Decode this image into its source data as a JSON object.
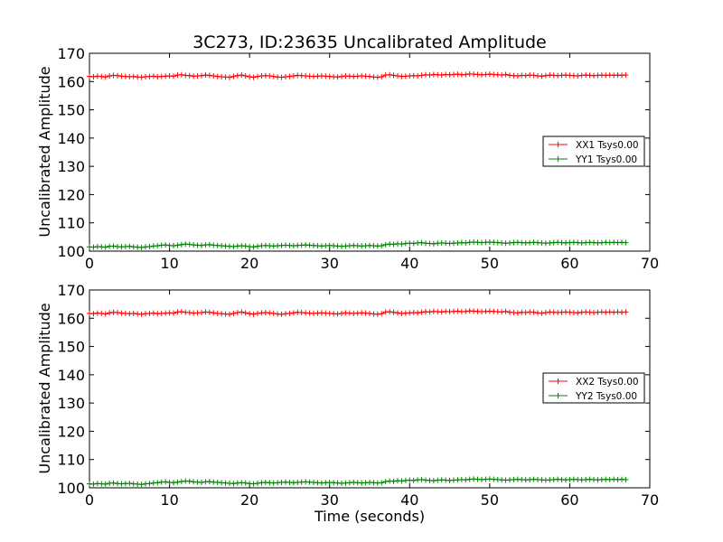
{
  "chart_data": {
    "type": "line",
    "title": "3C273, ID:23635 Uncalibrated Amplitude",
    "xlabel": "Time (seconds)",
    "shared_x_ticks": [
      0,
      10,
      20,
      30,
      40,
      50,
      60,
      70
    ],
    "panels": [
      {
        "ylabel": "Uncalibrated Amplitude",
        "xlim": [
          0,
          70
        ],
        "ylim": [
          100,
          170
        ],
        "yticks": [
          100,
          110,
          120,
          130,
          140,
          150,
          160,
          170
        ],
        "legend_position": "right",
        "series": [
          {
            "name": "XX1 Tsys0.00",
            "color": "#ff0000",
            "x_start": 0,
            "x_step": 0.5,
            "values": [
              161.8,
              161.7,
              161.9,
              161.8,
              161.6,
              162.0,
              162.2,
              162.1,
              161.9,
              161.8,
              161.7,
              161.8,
              161.6,
              161.5,
              161.7,
              161.8,
              161.9,
              161.7,
              161.8,
              161.9,
              162.0,
              161.9,
              162.3,
              162.4,
              162.2,
              162.1,
              161.9,
              162.0,
              162.1,
              162.3,
              162.2,
              162.0,
              161.8,
              161.7,
              161.6,
              161.5,
              161.8,
              162.1,
              162.3,
              162.0,
              161.7,
              161.5,
              161.8,
              162.0,
              162.1,
              162.0,
              161.8,
              161.6,
              161.5,
              161.7,
              161.8,
              162.0,
              162.2,
              162.1,
              162.0,
              161.9,
              161.8,
              161.9,
              162.0,
              161.9,
              161.8,
              161.7,
              161.6,
              161.8,
              162.0,
              161.9,
              161.8,
              161.9,
              162.0,
              161.9,
              161.8,
              161.6,
              161.5,
              161.7,
              162.3,
              162.4,
              162.2,
              162.0,
              161.8,
              161.9,
              162.0,
              162.1,
              162.0,
              162.2,
              162.4,
              162.3,
              162.5,
              162.4,
              162.3,
              162.5,
              162.4,
              162.5,
              162.6,
              162.4,
              162.5,
              162.7,
              162.6,
              162.5,
              162.4,
              162.5,
              162.6,
              162.5,
              162.4,
              162.3,
              162.5,
              162.2,
              162.1,
              162.0,
              162.2,
              162.1,
              162.3,
              162.2,
              162.0,
              161.9,
              162.1,
              162.3,
              162.2,
              162.1,
              162.2,
              162.3,
              162.2,
              162.1,
              162.0,
              162.2,
              162.3,
              162.2,
              162.1,
              162.2,
              162.3,
              162.2,
              162.3,
              162.2,
              162.3,
              162.2,
              162.3
            ]
          },
          {
            "name": "YY1 Tsys0.00",
            "color": "#008000",
            "x_start": 0,
            "x_step": 0.5,
            "values": [
              101.5,
              101.4,
              101.6,
              101.5,
              101.4,
              101.7,
              101.8,
              101.6,
              101.5,
              101.6,
              101.7,
              101.5,
              101.4,
              101.3,
              101.5,
              101.6,
              101.8,
              101.9,
              102.1,
              102.2,
              102.0,
              101.9,
              102.1,
              102.3,
              102.5,
              102.4,
              102.2,
              102.1,
              102.0,
              102.2,
              102.3,
              102.1,
              102.0,
              101.9,
              101.8,
              101.7,
              101.6,
              101.8,
              101.9,
              101.8,
              101.6,
              101.5,
              101.7,
              101.9,
              102.0,
              101.9,
              101.8,
              101.9,
              102.0,
              102.1,
              102.0,
              101.9,
              102.0,
              102.1,
              102.2,
              102.1,
              102.0,
              101.9,
              101.8,
              101.9,
              102.0,
              101.9,
              101.8,
              101.7,
              101.8,
              101.9,
              102.0,
              101.9,
              101.8,
              101.9,
              102.0,
              101.9,
              101.8,
              101.9,
              102.3,
              102.5,
              102.4,
              102.6,
              102.5,
              102.7,
              102.8,
              102.7,
              102.9,
              103.0,
              102.8,
              102.7,
              102.6,
              102.8,
              102.9,
              102.8,
              102.7,
              102.8,
              102.9,
              103.0,
              102.9,
              103.1,
              103.2,
              103.1,
              103.0,
              103.1,
              103.2,
              103.1,
              103.0,
              102.9,
              102.8,
              102.9,
              103.0,
              103.1,
              103.0,
              102.9,
              103.0,
              103.1,
              103.0,
              102.9,
              102.8,
              102.9,
              103.0,
              103.1,
              103.0,
              102.9,
              103.0,
              103.1,
              103.0,
              102.9,
              103.0,
              103.1,
              103.0,
              102.9,
              103.0,
              103.1,
              103.0,
              103.1,
              103.0,
              103.1,
              103.0
            ]
          }
        ]
      },
      {
        "ylabel": "Uncalibrated Amplitude",
        "xlim": [
          0,
          70
        ],
        "ylim": [
          100,
          170
        ],
        "yticks": [
          100,
          110,
          120,
          130,
          140,
          150,
          160,
          170
        ],
        "legend_position": "right",
        "series": [
          {
            "name": "XX2 Tsys0.00",
            "color": "#ff0000",
            "x_start": 0,
            "x_step": 0.5,
            "values": [
              161.7,
              161.6,
              161.8,
              161.7,
              161.5,
              161.9,
              162.1,
              162.0,
              161.8,
              161.7,
              161.6,
              161.7,
              161.5,
              161.4,
              161.6,
              161.7,
              161.8,
              161.6,
              161.7,
              161.8,
              161.9,
              161.8,
              162.2,
              162.3,
              162.1,
              162.0,
              161.8,
              161.9,
              162.0,
              162.2,
              162.1,
              161.9,
              161.7,
              161.6,
              161.5,
              161.4,
              161.7,
              162.0,
              162.2,
              161.9,
              161.6,
              161.4,
              161.7,
              161.9,
              162.0,
              161.9,
              161.7,
              161.5,
              161.4,
              161.6,
              161.7,
              161.9,
              162.1,
              162.0,
              161.9,
              161.8,
              161.7,
              161.8,
              161.9,
              161.8,
              161.7,
              161.6,
              161.5,
              161.7,
              161.9,
              161.8,
              161.7,
              161.8,
              161.9,
              161.8,
              161.7,
              161.5,
              161.4,
              161.6,
              162.2,
              162.3,
              162.1,
              161.9,
              161.7,
              161.8,
              161.9,
              162.0,
              161.9,
              162.1,
              162.3,
              162.2,
              162.4,
              162.3,
              162.2,
              162.4,
              162.3,
              162.4,
              162.5,
              162.3,
              162.4,
              162.6,
              162.5,
              162.4,
              162.3,
              162.4,
              162.5,
              162.4,
              162.3,
              162.2,
              162.4,
              162.1,
              162.0,
              161.9,
              162.1,
              162.0,
              162.2,
              162.1,
              161.9,
              161.8,
              162.0,
              162.2,
              162.1,
              162.0,
              162.1,
              162.2,
              162.1,
              162.0,
              161.9,
              162.1,
              162.2,
              162.1,
              162.0,
              162.1,
              162.2,
              162.1,
              162.2,
              162.1,
              162.2,
              162.1,
              162.2
            ]
          },
          {
            "name": "YY2 Tsys0.00",
            "color": "#008000",
            "x_start": 0,
            "x_step": 0.5,
            "values": [
              101.4,
              101.3,
              101.5,
              101.4,
              101.3,
              101.6,
              101.7,
              101.5,
              101.4,
              101.5,
              101.6,
              101.4,
              101.3,
              101.2,
              101.4,
              101.5,
              101.7,
              101.8,
              102.0,
              102.1,
              101.9,
              101.8,
              102.0,
              102.2,
              102.4,
              102.3,
              102.1,
              102.0,
              101.9,
              102.1,
              102.2,
              102.0,
              101.9,
              101.8,
              101.7,
              101.6,
              101.5,
              101.7,
              101.8,
              101.7,
              101.5,
              101.4,
              101.6,
              101.8,
              101.9,
              101.8,
              101.7,
              101.8,
              101.9,
              102.0,
              101.9,
              101.8,
              101.9,
              102.0,
              102.1,
              102.0,
              101.9,
              101.8,
              101.7,
              101.8,
              101.9,
              101.8,
              101.7,
              101.6,
              101.7,
              101.8,
              101.9,
              101.8,
              101.7,
              101.8,
              101.9,
              101.8,
              101.7,
              101.8,
              102.2,
              102.4,
              102.3,
              102.5,
              102.4,
              102.6,
              102.7,
              102.6,
              102.8,
              102.9,
              102.7,
              102.6,
              102.5,
              102.7,
              102.8,
              102.7,
              102.6,
              102.7,
              102.8,
              102.9,
              102.8,
              103.0,
              103.1,
              103.0,
              102.9,
              103.0,
              103.1,
              103.0,
              102.9,
              102.8,
              102.7,
              102.8,
              102.9,
              103.0,
              102.9,
              102.8,
              102.9,
              103.0,
              102.9,
              102.8,
              102.7,
              102.8,
              102.9,
              103.0,
              102.9,
              102.8,
              102.9,
              103.0,
              102.9,
              102.8,
              102.9,
              103.0,
              102.9,
              102.8,
              102.9,
              103.0,
              102.9,
              103.0,
              102.9,
              103.0,
              102.9
            ]
          }
        ]
      }
    ]
  }
}
